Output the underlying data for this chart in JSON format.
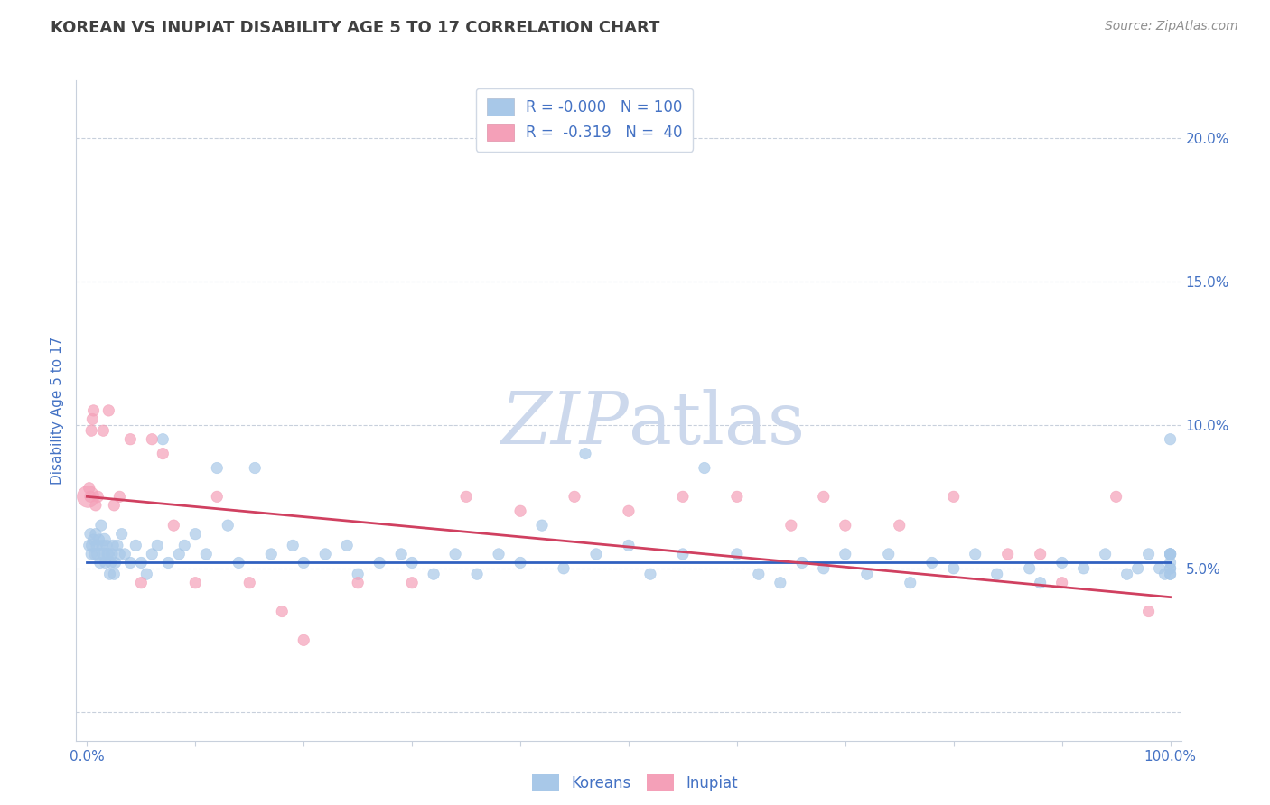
{
  "title": "KOREAN VS INUPIAT DISABILITY AGE 5 TO 17 CORRELATION CHART",
  "source_text": "Source: ZipAtlas.com",
  "ylabel": "Disability Age 5 to 17",
  "xlim": [
    -1,
    101
  ],
  "ylim": [
    -1,
    22
  ],
  "yticks": [
    0,
    5,
    10,
    15,
    20
  ],
  "ytick_labels": [
    "",
    "5.0%",
    "10.0%",
    "15.0%",
    "20.0%"
  ],
  "xticks": [
    0,
    10,
    20,
    30,
    40,
    50,
    60,
    70,
    80,
    90,
    100
  ],
  "xtick_labels": [
    "0.0%",
    "",
    "",
    "",
    "",
    "",
    "",
    "",
    "",
    "",
    "100.0%"
  ],
  "korean_R": -0.0,
  "korean_N": 100,
  "inupiat_R": -0.319,
  "inupiat_N": 40,
  "korean_color": "#a8c8e8",
  "inupiat_color": "#f4a0b8",
  "korean_line_color": "#3060c0",
  "inupiat_line_color": "#d04060",
  "title_color": "#404040",
  "axis_label_color": "#4472c4",
  "source_color": "#909090",
  "watermark_color": "#ccd8ec",
  "background_color": "#ffffff",
  "grid_color": "#c8d0dc",
  "legend_color": "#4472c4",
  "korean_x": [
    0.2,
    0.3,
    0.4,
    0.5,
    0.6,
    0.7,
    0.8,
    0.9,
    1.0,
    1.1,
    1.2,
    1.3,
    1.4,
    1.5,
    1.6,
    1.7,
    1.8,
    1.9,
    2.0,
    2.1,
    2.2,
    2.3,
    2.4,
    2.5,
    2.6,
    2.8,
    3.0,
    3.2,
    3.5,
    4.0,
    4.5,
    5.0,
    5.5,
    6.0,
    6.5,
    7.0,
    7.5,
    8.5,
    9.0,
    10.0,
    11.0,
    12.0,
    13.0,
    14.0,
    15.5,
    17.0,
    19.0,
    20.0,
    22.0,
    24.0,
    25.0,
    27.0,
    29.0,
    30.0,
    32.0,
    34.0,
    36.0,
    38.0,
    40.0,
    42.0,
    44.0,
    46.0,
    47.0,
    50.0,
    52.0,
    55.0,
    57.0,
    60.0,
    62.0,
    64.0,
    66.0,
    68.0,
    70.0,
    72.0,
    74.0,
    76.0,
    78.0,
    80.0,
    82.0,
    84.0,
    87.0,
    88.0,
    90.0,
    92.0,
    94.0,
    96.0,
    97.0,
    98.0,
    99.0,
    99.5,
    100.0,
    100.0,
    100.0,
    100.0,
    100.0,
    100.0,
    100.0,
    100.0,
    100.0,
    100.0
  ],
  "korean_y": [
    5.8,
    6.2,
    5.5,
    5.8,
    6.0,
    5.5,
    6.2,
    5.8,
    5.5,
    6.0,
    5.2,
    6.5,
    5.8,
    5.5,
    6.0,
    5.2,
    5.8,
    5.5,
    5.5,
    4.8,
    5.2,
    5.5,
    5.8,
    4.8,
    5.2,
    5.8,
    5.5,
    6.2,
    5.5,
    5.2,
    5.8,
    5.2,
    4.8,
    5.5,
    5.8,
    9.5,
    5.2,
    5.5,
    5.8,
    6.2,
    5.5,
    8.5,
    6.5,
    5.2,
    8.5,
    5.5,
    5.8,
    5.2,
    5.5,
    5.8,
    4.8,
    5.2,
    5.5,
    5.2,
    4.8,
    5.5,
    4.8,
    5.5,
    5.2,
    6.5,
    5.0,
    9.0,
    5.5,
    5.8,
    4.8,
    5.5,
    8.5,
    5.5,
    4.8,
    4.5,
    5.2,
    5.0,
    5.5,
    4.8,
    5.5,
    4.5,
    5.2,
    5.0,
    5.5,
    4.8,
    5.0,
    4.5,
    5.2,
    5.0,
    5.5,
    4.8,
    5.0,
    5.5,
    5.0,
    4.8,
    5.5,
    5.0,
    4.8,
    5.5,
    5.0,
    5.2,
    4.8,
    5.5,
    9.5,
    5.5
  ],
  "korean_sizes": [
    80,
    80,
    80,
    100,
    80,
    80,
    80,
    80,
    100,
    80,
    80,
    80,
    80,
    100,
    100,
    80,
    80,
    80,
    80,
    80,
    80,
    80,
    80,
    80,
    80,
    80,
    80,
    80,
    80,
    80,
    80,
    80,
    80,
    80,
    80,
    80,
    80,
    80,
    80,
    80,
    80,
    80,
    80,
    80,
    80,
    80,
    80,
    80,
    80,
    80,
    80,
    80,
    80,
    80,
    80,
    80,
    80,
    80,
    80,
    80,
    80,
    80,
    80,
    80,
    80,
    80,
    80,
    80,
    80,
    80,
    80,
    80,
    80,
    80,
    80,
    80,
    80,
    80,
    80,
    80,
    80,
    80,
    80,
    80,
    80,
    80,
    80,
    80,
    80,
    80,
    80,
    80,
    80,
    80,
    80,
    80,
    80,
    80,
    80,
    80
  ],
  "inupiat_x": [
    0.1,
    0.2,
    0.3,
    0.4,
    0.5,
    0.6,
    0.8,
    1.0,
    1.5,
    2.0,
    2.5,
    3.0,
    4.0,
    5.0,
    6.0,
    7.0,
    8.0,
    10.0,
    12.0,
    15.0,
    18.0,
    20.0,
    25.0,
    30.0,
    35.0,
    40.0,
    45.0,
    50.0,
    55.0,
    60.0,
    65.0,
    68.0,
    70.0,
    75.0,
    80.0,
    85.0,
    88.0,
    90.0,
    95.0,
    98.0
  ],
  "inupiat_y": [
    7.5,
    7.8,
    7.5,
    9.8,
    10.2,
    10.5,
    7.2,
    7.5,
    9.8,
    10.5,
    7.2,
    7.5,
    9.5,
    4.5,
    9.5,
    9.0,
    6.5,
    4.5,
    7.5,
    4.5,
    3.5,
    2.5,
    4.5,
    4.5,
    7.5,
    7.0,
    7.5,
    7.0,
    7.5,
    7.5,
    6.5,
    7.5,
    6.5,
    6.5,
    7.5,
    5.5,
    5.5,
    4.5,
    7.5,
    3.5
  ],
  "inupiat_sizes": [
    300,
    80,
    80,
    80,
    80,
    80,
    80,
    80,
    80,
    80,
    80,
    80,
    80,
    80,
    80,
    80,
    80,
    80,
    80,
    80,
    80,
    80,
    80,
    80,
    80,
    80,
    80,
    80,
    80,
    80,
    80,
    80,
    80,
    80,
    80,
    80,
    80,
    80,
    80,
    80
  ],
  "korean_trend_x0": 0,
  "korean_trend_x1": 100,
  "korean_trend_y0": 5.2,
  "korean_trend_y1": 5.2,
  "inupiat_trend_x0": 0,
  "inupiat_trend_x1": 100,
  "inupiat_trend_y0": 7.5,
  "inupiat_trend_y1": 4.0
}
